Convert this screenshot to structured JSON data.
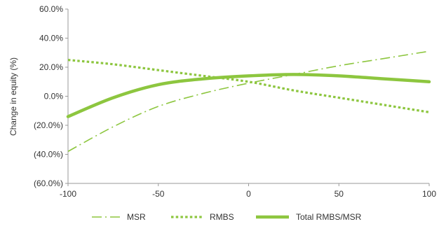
{
  "chart_data": {
    "type": "line",
    "title": "",
    "xlabel": "",
    "ylabel": "Change in equity (%)",
    "xlim": [
      -100,
      100
    ],
    "ylim": [
      -60,
      60
    ],
    "x_ticks": [
      -100,
      -50,
      0,
      50,
      100
    ],
    "x_tick_labels": [
      "-100",
      "-50",
      "0",
      "50",
      "100"
    ],
    "y_ticks": [
      60,
      40,
      20,
      0,
      -20,
      -40,
      -60
    ],
    "y_tick_labels": [
      "60.0%",
      "40.0%",
      "20.0%",
      "0.0%",
      "(20.0%)",
      "(40.0%)",
      "(60.0%)"
    ],
    "grid": false,
    "legend_position": "bottom",
    "colors": {
      "series": "#8dc63f",
      "axis": "#9a9a9a",
      "text": "#333333"
    },
    "series": [
      {
        "name": "MSR",
        "style": "dash-dot",
        "x": [
          -100,
          -75,
          -50,
          -25,
          0,
          25,
          50,
          75,
          100
        ],
        "y": [
          -38,
          -21,
          -7,
          2,
          9,
          15,
          21,
          26,
          31
        ]
      },
      {
        "name": "RMBS",
        "style": "dotted",
        "x": [
          -100,
          -75,
          -50,
          -25,
          0,
          25,
          50,
          75,
          100
        ],
        "y": [
          25,
          22,
          18,
          14,
          10,
          4,
          -1,
          -6,
          -11
        ]
      },
      {
        "name": "Total RMBS/MSR",
        "style": "solid",
        "x": [
          -100,
          -75,
          -50,
          -25,
          0,
          25,
          50,
          75,
          100
        ],
        "y": [
          -14,
          -1,
          8,
          12,
          14,
          15,
          14,
          12,
          10
        ]
      }
    ]
  }
}
